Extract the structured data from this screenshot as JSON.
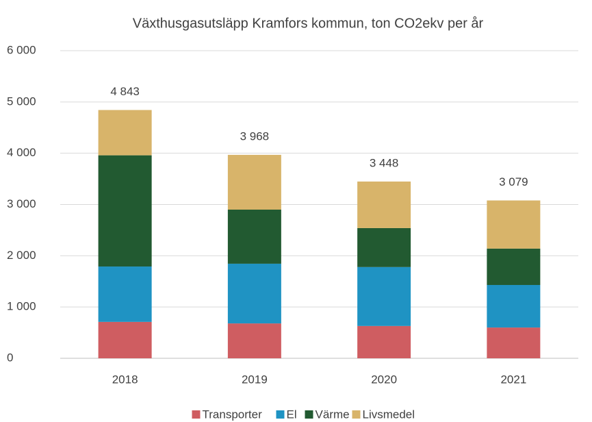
{
  "chart_data": {
    "type": "stacked_bar",
    "title": "Växthusgasutsläpp Kramfors kommun, ton CO2ekv per år",
    "categories": [
      "2018",
      "2019",
      "2020",
      "2021"
    ],
    "series": [
      {
        "name": "Transporter",
        "color": "#cf5d61",
        "values": [
          710,
          680,
          630,
          600
        ]
      },
      {
        "name": "El",
        "color": "#1f93c3",
        "values": [
          1080,
          1165,
          1150,
          830
        ]
      },
      {
        "name": "Värme",
        "color": "#225a31",
        "values": [
          2170,
          1055,
          760,
          710
        ]
      },
      {
        "name": "Livsmedel",
        "color": "#d8b46a",
        "values": [
          883,
          1068,
          908,
          939
        ]
      }
    ],
    "totals": [
      4843,
      3968,
      3448,
      3079
    ],
    "total_labels": [
      "4 843",
      "3 968",
      "3 448",
      "3 079"
    ],
    "ylim": [
      0,
      6000
    ],
    "yticks": [
      0,
      {
        "value": 1000,
        "label": "1 000"
      },
      {
        "value": 2000,
        "label": "2 000"
      },
      {
        "value": 3000,
        "label": "3 000"
      },
      {
        "value": 4000,
        "label": "4 000"
      },
      {
        "value": 5000,
        "label": "5 000"
      },
      {
        "value": 6000,
        "label": "6 000"
      }
    ],
    "grid": true,
    "legend": "bottom"
  }
}
